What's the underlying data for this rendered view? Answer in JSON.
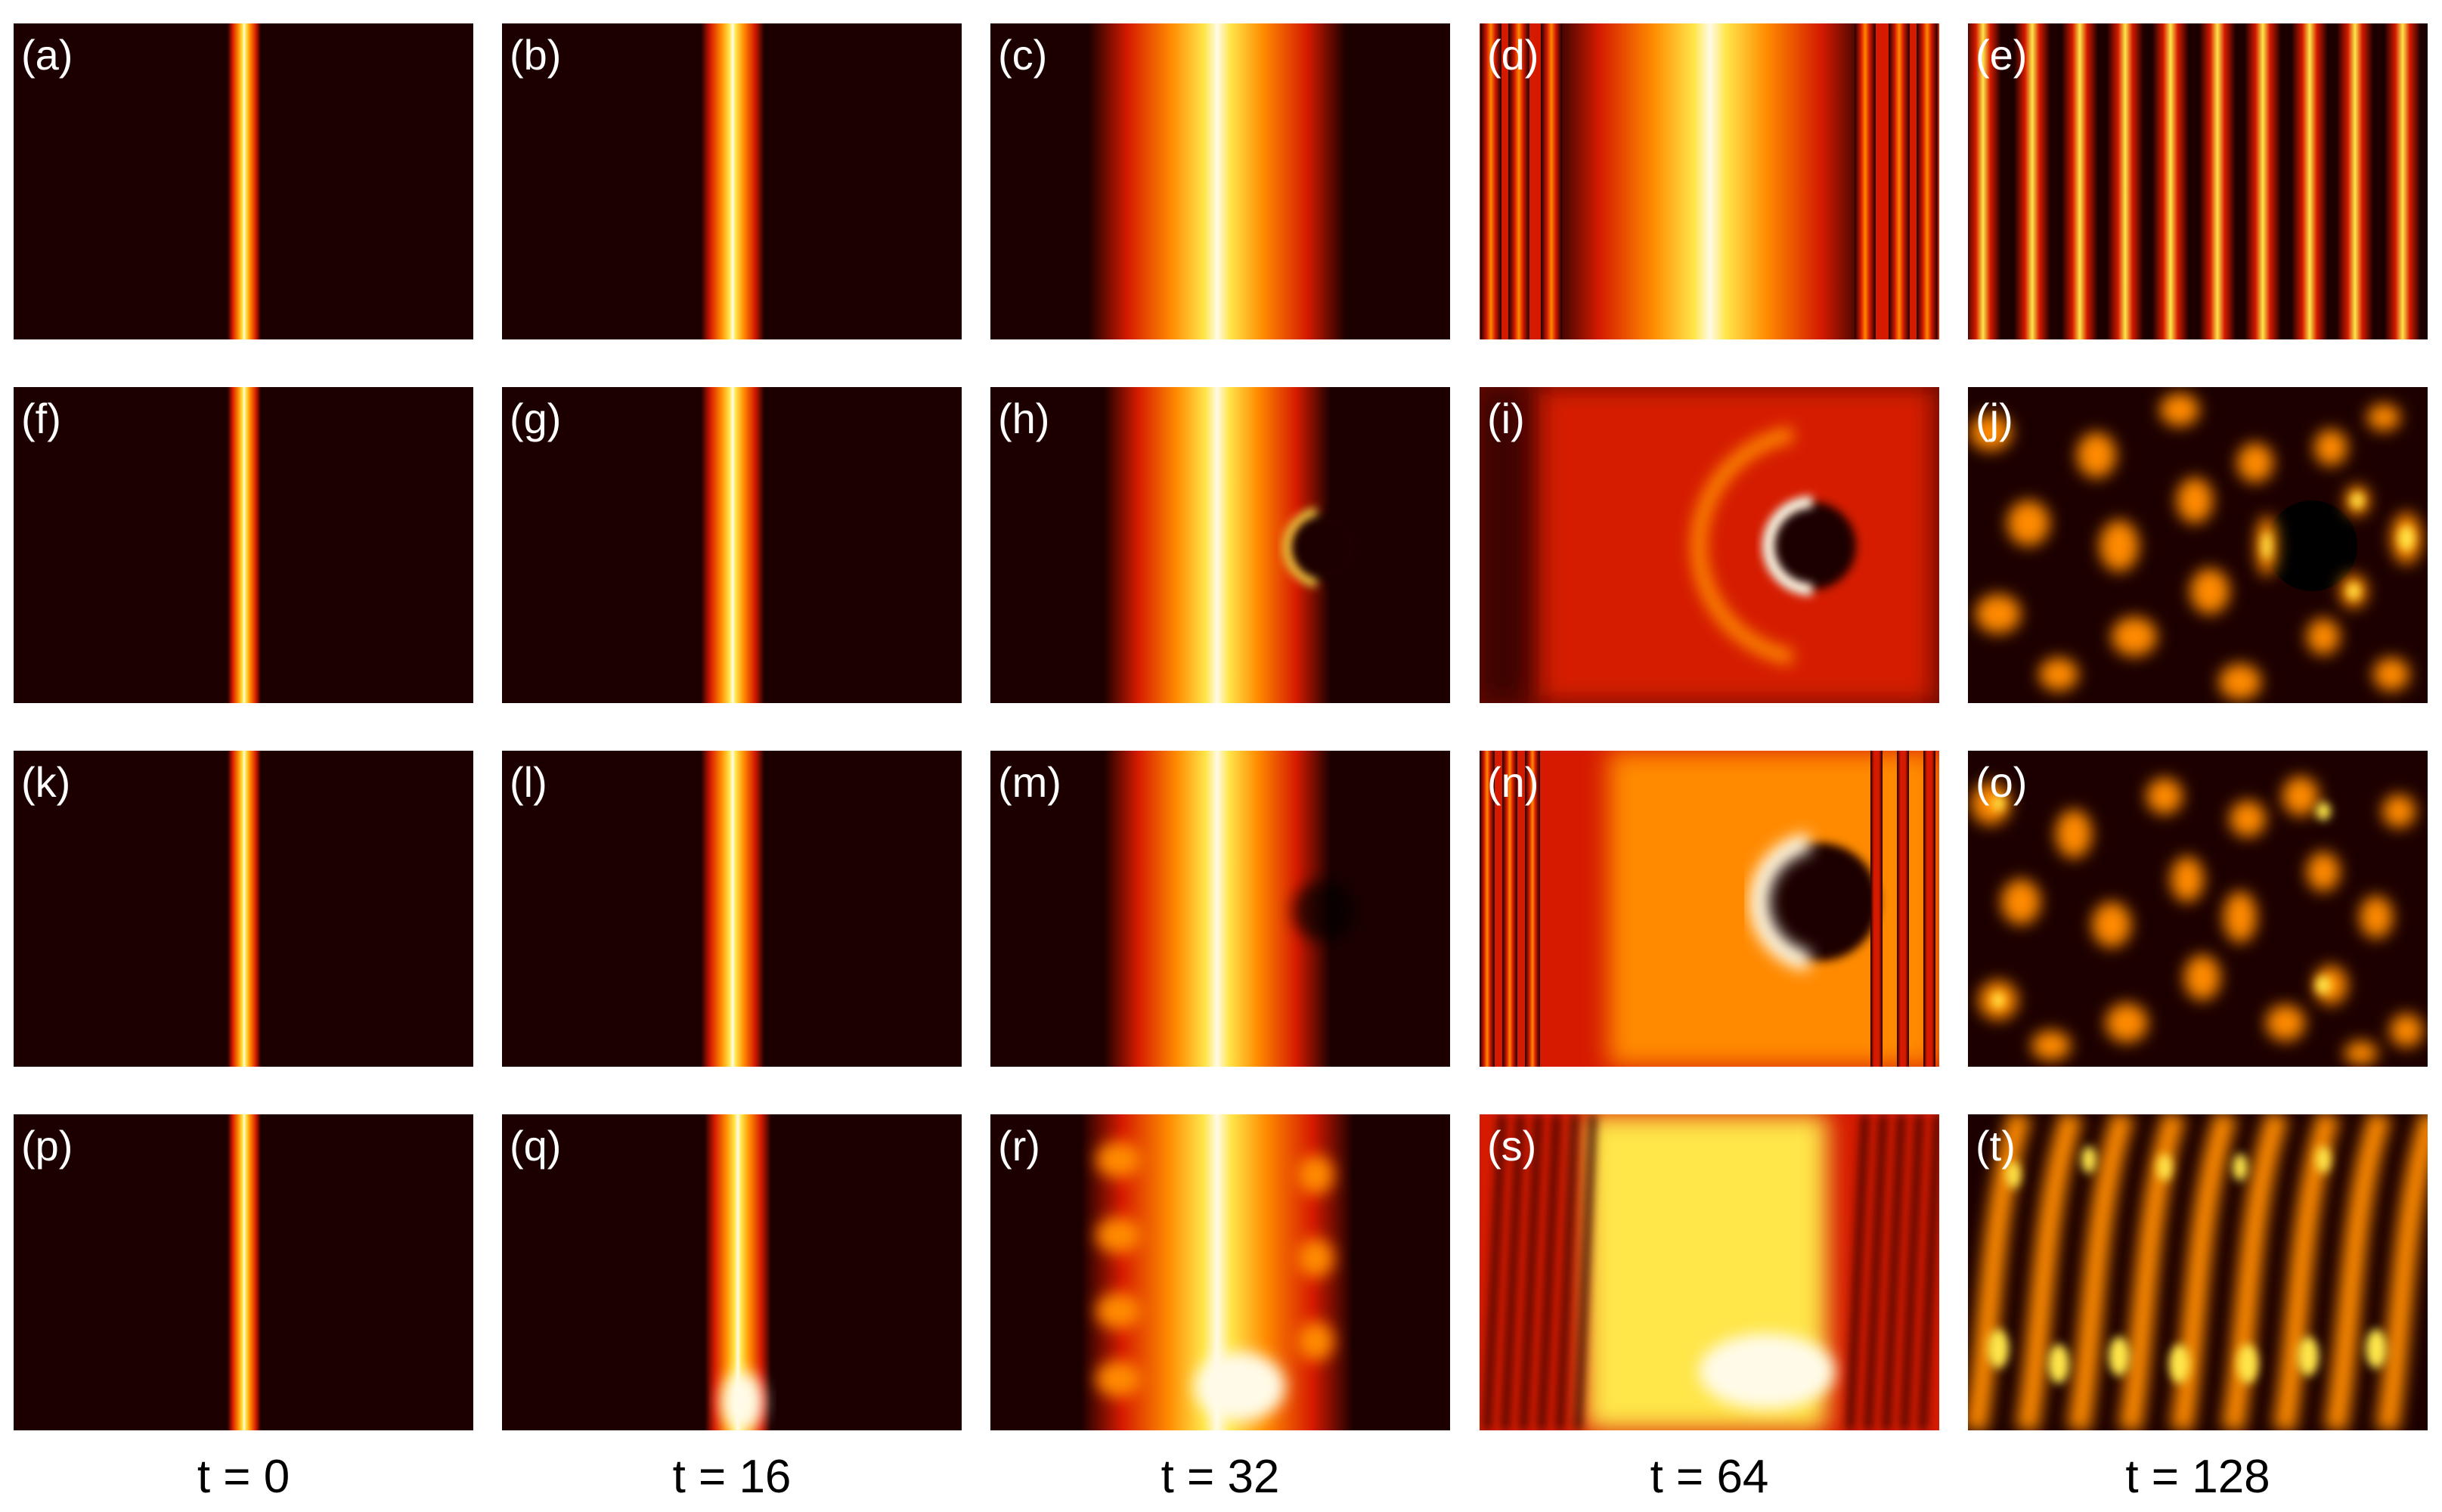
{
  "figure": {
    "panels": [
      [
        "(a)",
        "(b)",
        "(c)",
        "(d)",
        "(e)"
      ],
      [
        "(f)",
        "(g)",
        "(h)",
        "(i)",
        "(j)"
      ],
      [
        "(k)",
        "(l)",
        "(m)",
        "(n)",
        "(o)"
      ],
      [
        "(p)",
        "(q)",
        "(r)",
        "(s)",
        "(t)"
      ]
    ],
    "time_labels": [
      "t = 0",
      "t = 16",
      "t = 32",
      "t = 64",
      "t = 128"
    ]
  },
  "colors": {
    "background": "#ffffff",
    "field_dark": "#1c0000",
    "field_red": "#d51a00",
    "field_orange": "#ff8a00",
    "field_yellow": "#ffe64a",
    "field_white": "#fffbe8",
    "panel_label": "#ffffff",
    "time_label": "#000000"
  }
}
